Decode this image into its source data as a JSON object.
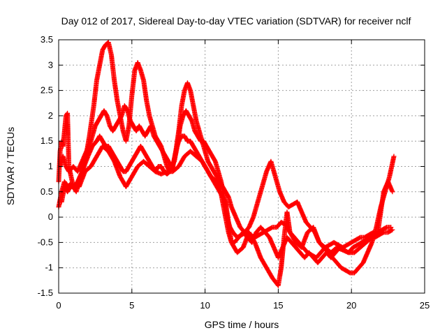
{
  "chart_data": {
    "type": "scatter",
    "title": "Day 012 of 2017, Sidereal Day-to-day VTEC variation (SDTVAR) for receiver nclf",
    "xlabel": "GPS time / hours",
    "ylabel": "SDTVAR / TECUs",
    "xlim": [
      0,
      25
    ],
    "ylim": [
      -1.5,
      3.5
    ],
    "xticks": [
      0,
      5,
      10,
      15,
      20,
      25
    ],
    "yticks": [
      -1.5,
      -1,
      -0.5,
      0,
      0.5,
      1,
      1.5,
      2,
      2.5,
      3,
      3.5
    ],
    "xtick_labels": [
      "0",
      "5",
      "10",
      "15",
      "20",
      "25"
    ],
    "ytick_labels": [
      "-1.5",
      "-1",
      "-0.5",
      "0",
      "0.5",
      "1",
      "1.5",
      "2",
      "2.5",
      "3",
      "3.5"
    ],
    "grid": true,
    "marker": "plus",
    "color": "#ff0000",
    "series": [
      {
        "x": [
          0.0,
          0.2,
          0.4,
          0.6,
          0.8,
          1.0,
          1.3,
          1.6,
          2.0,
          2.3,
          2.6,
          2.8,
          3.0,
          3.2,
          3.4,
          3.6,
          3.8,
          4.0,
          4.2,
          4.4,
          4.6,
          4.8,
          5.0,
          5.2,
          5.4,
          5.6,
          5.8,
          6.0,
          6.2,
          6.4,
          6.6,
          6.8,
          7.0,
          7.2,
          7.4,
          7.6,
          7.8,
          8.0,
          8.2,
          8.4,
          8.6,
          8.8,
          9.0,
          9.2,
          9.4,
          9.6,
          9.8,
          10.0,
          10.2,
          10.4,
          10.6,
          10.8,
          11.0,
          11.2,
          11.4,
          11.6,
          11.8,
          12.0,
          12.3,
          12.6,
          12.9,
          13.2,
          13.5,
          13.8,
          14.1,
          14.4,
          14.7,
          15.0,
          15.3,
          15.6,
          15.9,
          16.2,
          16.5,
          16.8,
          17.1,
          17.4,
          17.7,
          18.0,
          18.3,
          18.6,
          18.9,
          19.2,
          19.5,
          19.8,
          20.1,
          20.4,
          20.7,
          21.0,
          21.3,
          21.6,
          21.9,
          22.2,
          22.5,
          22.8
        ],
        "y": [
          0.2,
          0.5,
          0.7,
          0.6,
          0.65,
          0.6,
          0.7,
          0.9,
          1.2,
          1.4,
          1.5,
          1.6,
          1.5,
          1.4,
          1.4,
          1.3,
          1.2,
          1.1,
          1.0,
          0.9,
          0.9,
          1.0,
          1.1,
          1.2,
          1.3,
          1.4,
          1.3,
          1.2,
          1.1,
          1.0,
          0.9,
          1.0,
          1.0,
          0.9,
          0.85,
          0.9,
          1.0,
          1.3,
          1.5,
          1.6,
          1.6,
          1.5,
          1.5,
          1.4,
          1.3,
          1.2,
          1.1,
          1.0,
          0.9,
          0.8,
          0.75,
          0.7,
          0.6,
          0.3,
          0.0,
          -0.3,
          -0.5,
          -0.5,
          -0.4,
          -0.3,
          -0.4,
          -0.5,
          -0.3,
          -0.2,
          -0.3,
          -0.4,
          -0.6,
          -0.8,
          -0.6,
          -0.4,
          -0.5,
          -0.6,
          -0.7,
          -0.8,
          -0.7,
          -0.8,
          -0.9,
          -0.8,
          -0.7,
          -0.8,
          -0.7,
          -0.6,
          -0.65,
          -0.7,
          -0.6,
          -0.55,
          -0.5,
          -0.45,
          -0.4,
          -0.4,
          -0.35,
          -0.3,
          -0.3,
          -0.25
        ]
      },
      {
        "x": [
          0.1,
          0.3,
          0.5,
          0.7,
          1.0,
          1.3,
          1.6,
          1.9,
          2.2,
          2.5,
          2.7,
          2.9,
          3.1,
          3.3,
          3.5,
          3.7,
          3.9,
          4.1,
          4.3,
          4.5,
          4.7,
          4.9,
          5.1,
          5.3,
          5.5,
          5.7,
          5.9,
          6.1,
          6.3,
          6.5,
          6.7,
          6.9,
          7.1,
          7.3,
          7.5,
          7.7,
          7.9,
          8.1,
          8.3,
          8.5,
          8.7,
          8.9,
          9.1,
          9.3,
          9.5,
          9.7,
          9.9,
          10.1,
          10.3,
          10.5,
          10.7,
          10.9,
          11.1,
          11.3,
          11.5,
          11.7,
          11.9,
          12.2,
          12.5,
          12.8,
          13.1,
          13.4,
          13.7,
          14.0,
          14.3,
          14.6,
          14.9,
          15.2,
          15.5,
          15.8,
          16.1,
          16.4,
          16.7,
          17.0,
          17.3,
          17.6,
          17.9,
          18.2,
          18.5,
          18.8,
          19.1,
          19.4,
          19.7,
          20.0,
          20.3,
          20.6,
          20.9,
          21.2,
          21.5,
          21.8,
          22.1,
          22.4,
          22.7
        ],
        "y": [
          1.0,
          1.2,
          1.0,
          0.9,
          1.0,
          0.9,
          1.1,
          1.3,
          1.5,
          1.8,
          1.9,
          2.0,
          2.1,
          2.0,
          1.8,
          1.7,
          1.8,
          1.9,
          2.0,
          2.2,
          2.1,
          1.9,
          1.8,
          1.7,
          1.8,
          1.7,
          1.6,
          1.7,
          1.8,
          1.6,
          1.5,
          1.4,
          1.3,
          1.2,
          1.1,
          1.0,
          1.1,
          1.4,
          1.8,
          2.0,
          2.1,
          2.0,
          1.9,
          1.7,
          1.6,
          1.5,
          1.5,
          1.4,
          1.3,
          1.2,
          1.1,
          0.9,
          0.7,
          0.4,
          0.0,
          -0.2,
          -0.3,
          -0.4,
          -0.35,
          -0.3,
          -0.35,
          -0.4,
          -0.35,
          -0.3,
          -0.25,
          -0.2,
          -0.2,
          -0.1,
          -0.15,
          -0.3,
          -0.4,
          -0.5,
          -0.6,
          -0.7,
          -0.75,
          -0.8,
          -0.7,
          -0.6,
          -0.55,
          -0.5,
          -0.55,
          -0.6,
          -0.55,
          -0.5,
          -0.45,
          -0.4,
          -0.4,
          -0.35,
          -0.3,
          -0.3,
          -0.25,
          -0.2,
          -0.2
        ]
      },
      {
        "x": [
          0.2,
          0.4,
          0.6,
          0.8,
          1.0,
          1.2,
          1.5,
          1.8,
          2.1,
          2.4,
          2.6,
          2.8,
          3.0,
          3.2,
          3.4,
          3.6,
          3.8,
          4.0,
          4.2,
          4.4,
          4.6,
          4.8,
          5.0,
          5.2,
          5.4,
          5.6,
          5.8,
          6.0,
          6.2,
          6.4,
          6.6,
          6.8,
          7.0,
          7.2,
          7.4,
          7.6,
          7.8,
          8.0,
          8.2,
          8.4,
          8.6,
          8.8,
          9.0,
          9.2,
          9.4,
          9.6,
          9.8,
          10.0,
          10.2,
          10.4,
          10.6,
          10.8,
          11.0,
          11.2,
          11.4,
          11.6,
          11.8,
          12.1,
          12.4,
          12.7,
          13.0,
          13.3,
          13.6,
          13.9,
          14.2,
          14.5,
          14.8,
          15.1,
          15.4,
          15.7,
          16.0,
          16.3,
          16.6,
          16.9,
          17.2,
          17.5,
          17.8,
          18.1,
          18.4,
          18.7,
          19.0,
          19.3,
          19.6,
          19.9,
          20.2,
          20.5,
          20.8,
          21.1,
          21.4,
          21.7,
          22.0,
          22.3,
          22.6,
          22.9
        ],
        "y": [
          0.3,
          0.6,
          0.5,
          0.6,
          0.6,
          0.5,
          0.8,
          1.1,
          1.6,
          2.2,
          2.7,
          3.0,
          3.3,
          3.4,
          3.45,
          3.2,
          2.7,
          2.3,
          2.0,
          1.7,
          1.5,
          1.8,
          2.4,
          2.9,
          3.05,
          2.9,
          2.7,
          2.3,
          2.0,
          1.8,
          1.6,
          1.5,
          1.4,
          1.2,
          1.0,
          0.9,
          1.0,
          1.3,
          1.7,
          2.2,
          2.5,
          2.65,
          2.5,
          2.2,
          1.9,
          1.7,
          1.5,
          1.3,
          1.1,
          1.0,
          0.9,
          0.8,
          0.7,
          0.6,
          0.5,
          0.4,
          0.2,
          0.0,
          -0.2,
          -0.3,
          -0.2,
          0.0,
          0.3,
          0.6,
          0.9,
          1.1,
          0.8,
          0.5,
          0.3,
          0.2,
          0.25,
          0.3,
          0.1,
          -0.1,
          -0.2,
          -0.3,
          -0.5,
          -0.6,
          -0.7,
          -0.8,
          -0.9,
          -1.0,
          -1.05,
          -1.1,
          -1.1,
          -1.0,
          -0.9,
          -0.7,
          -0.5,
          -0.2,
          0.2,
          0.5,
          0.8,
          1.2
        ]
      },
      {
        "x": [
          0.0,
          0.1,
          0.2,
          0.3,
          0.5,
          0.6,
          0.7,
          1.0,
          1.4,
          1.8,
          2.2,
          2.6,
          3.0,
          3.4,
          3.8,
          4.2,
          4.6,
          5.0,
          5.4,
          5.8,
          6.2,
          6.6,
          7.0,
          7.4,
          7.8,
          8.2,
          8.6,
          9.0,
          9.4,
          9.8,
          10.2,
          10.6,
          11.0,
          11.4,
          11.8,
          12.2,
          12.6,
          13.0,
          13.4,
          13.8,
          14.2,
          14.6,
          15.0,
          15.2,
          15.4,
          15.6,
          15.8,
          16.2,
          16.6,
          17.0,
          17.4,
          17.8,
          18.2,
          18.6,
          19.0,
          19.4,
          19.8,
          20.2,
          20.6,
          21.0,
          21.4,
          21.8,
          22.2,
          22.5,
          22.8
        ],
        "y": [
          0.7,
          1.3,
          1.5,
          1.4,
          2.0,
          2.05,
          1.0,
          0.6,
          0.6,
          0.9,
          1.0,
          1.2,
          1.4,
          1.3,
          1.1,
          0.8,
          0.6,
          0.8,
          1.0,
          1.1,
          1.0,
          0.9,
          0.85,
          0.9,
          0.9,
          1.0,
          1.2,
          1.3,
          1.2,
          1.1,
          0.9,
          0.7,
          0.5,
          0.3,
          -0.5,
          -0.7,
          -0.6,
          -0.3,
          -0.5,
          -0.8,
          -1.0,
          -1.2,
          -1.35,
          -1.0,
          -0.4,
          0.1,
          -0.3,
          -0.5,
          -0.6,
          -0.3,
          -0.2,
          -0.5,
          -0.6,
          -0.7,
          -0.6,
          -0.65,
          -0.7,
          -0.7,
          -0.6,
          -0.5,
          -0.4,
          -0.3,
          0.5,
          0.7,
          0.5
        ]
      }
    ]
  }
}
